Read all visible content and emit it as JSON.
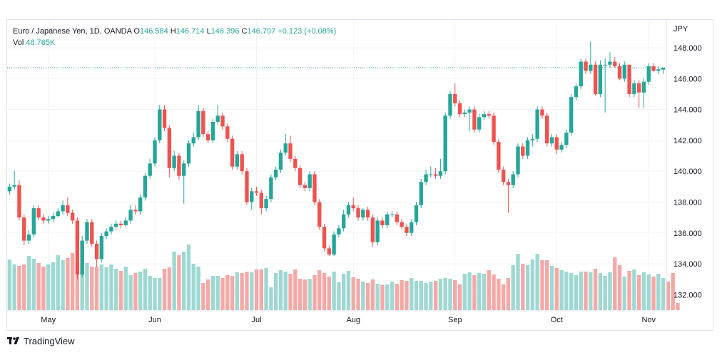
{
  "legend": {
    "symbol": "Euro / Japanese Yen, 1D, OANDA",
    "open_label": "O",
    "open": "146.584",
    "high_label": "H",
    "high": "146.714",
    "low_label": "L",
    "low": "146.396",
    "close_label": "C",
    "close": "146.707",
    "change": "+0.123 (+0.08%)",
    "vol_label": "Vol",
    "vol": "48.765K"
  },
  "currency": "JPY",
  "footer": {
    "brand": "TradingView"
  },
  "colors": {
    "up": "#26a69a",
    "down": "#ef5350",
    "up_vol": "#9fd8d2",
    "down_vol": "#f4a9a7",
    "grid": "#f0f3fa",
    "axis_text": "#131722",
    "last_price_line": "#26a69a"
  },
  "chart_data": {
    "type": "candlestick",
    "title": "Euro / Japanese Yen, 1D, OANDA",
    "ylabel": "JPY",
    "ylim": [
      131.0,
      149.8
    ],
    "y_ticks": [
      "132.000",
      "134.000",
      "136.000",
      "138.000",
      "140.000",
      "142.000",
      "144.000",
      "146.000",
      "148.000"
    ],
    "x_tick_labels": [
      "May",
      "Jun",
      "Jul",
      "Aug",
      "Sep",
      "Oct",
      "Nov"
    ],
    "x_tick_index": [
      8,
      30,
      51,
      71,
      92,
      113,
      132
    ],
    "last_price": 146.707,
    "grid": true,
    "closes": [
      139.0,
      139.1,
      137.0,
      135.5,
      135.9,
      137.6,
      137.0,
      136.8,
      136.9,
      137.1,
      137.4,
      137.8,
      137.3,
      136.8,
      133.3,
      135.5,
      136.7,
      135.3,
      134.3,
      135.8,
      136.1,
      136.4,
      136.6,
      136.5,
      136.8,
      137.5,
      137.4,
      138.3,
      139.7,
      140.5,
      142.0,
      144.0,
      142.8,
      140.2,
      141.0,
      139.7,
      140.5,
      141.8,
      142.2,
      143.9,
      142.4,
      142.0,
      143.2,
      143.6,
      142.9,
      142.1,
      140.3,
      141.1,
      140.0,
      138.0,
      138.7,
      138.6,
      137.6,
      138.2,
      139.6,
      140.1,
      141.2,
      141.8,
      140.8,
      140.2,
      139.1,
      138.9,
      139.8,
      138.0,
      136.4,
      135.0,
      134.6,
      135.9,
      136.3,
      137.2,
      137.8,
      137.6,
      137.0,
      137.5,
      137.0,
      135.4,
      136.8,
      136.5,
      137.2,
      137.2,
      136.7,
      136.4,
      136.0,
      136.7,
      137.8,
      139.3,
      139.8,
      139.8,
      139.7,
      140.0,
      143.6,
      145.0,
      144.4,
      143.7,
      143.8,
      144.0,
      142.7,
      143.5,
      143.7,
      143.6,
      141.9,
      140.1,
      139.3,
      139.1,
      139.8,
      141.6,
      141.0,
      142.0,
      142.1,
      144.0,
      143.6,
      141.8,
      142.2,
      141.4,
      141.7,
      142.5,
      144.8,
      145.5,
      147.1,
      146.5,
      146.9,
      145.0,
      146.9,
      146.9,
      147.1,
      146.8,
      146.0,
      146.9,
      145.0,
      145.7,
      145.1,
      145.8,
      146.8,
      146.5,
      146.6,
      146.707
    ],
    "opens": [
      138.7,
      139.0,
      139.1,
      137.0,
      135.5,
      135.9,
      137.6,
      137.0,
      136.8,
      136.9,
      137.1,
      137.4,
      137.8,
      137.3,
      136.8,
      133.3,
      135.5,
      136.7,
      135.3,
      134.3,
      135.8,
      136.1,
      136.4,
      136.6,
      136.5,
      136.8,
      137.5,
      137.4,
      138.3,
      139.7,
      140.5,
      142.0,
      144.0,
      142.8,
      140.2,
      141.0,
      139.7,
      140.5,
      141.8,
      142.2,
      143.9,
      142.4,
      142.0,
      143.2,
      143.6,
      142.9,
      142.1,
      140.3,
      141.1,
      140.0,
      138.0,
      138.7,
      138.6,
      137.6,
      138.2,
      139.6,
      140.1,
      141.2,
      141.8,
      140.8,
      140.2,
      139.1,
      138.9,
      139.8,
      138.0,
      136.4,
      135.0,
      134.6,
      135.9,
      136.3,
      137.2,
      137.8,
      137.6,
      137.0,
      137.5,
      137.0,
      135.4,
      136.8,
      136.5,
      137.2,
      137.2,
      136.7,
      136.4,
      136.0,
      136.7,
      137.8,
      139.3,
      139.8,
      139.8,
      139.7,
      140.0,
      143.6,
      145.0,
      144.4,
      143.7,
      143.8,
      144.0,
      142.7,
      143.5,
      143.7,
      143.6,
      141.9,
      140.1,
      139.3,
      139.1,
      139.8,
      141.6,
      141.0,
      142.0,
      142.1,
      144.0,
      143.6,
      141.8,
      142.2,
      141.4,
      141.7,
      142.5,
      144.8,
      145.5,
      147.1,
      146.5,
      146.9,
      145.0,
      146.9,
      146.9,
      147.1,
      146.8,
      146.0,
      146.9,
      145.0,
      145.7,
      145.1,
      145.8,
      146.8,
      146.5,
      146.584
    ],
    "highs": [
      139.2,
      140.0,
      139.4,
      137.2,
      136.2,
      137.8,
      137.8,
      137.2,
      137.1,
      137.3,
      137.6,
      138.1,
      138.3,
      137.5,
      137.0,
      135.8,
      136.9,
      136.9,
      135.5,
      136.0,
      136.3,
      136.6,
      136.8,
      136.8,
      137.0,
      137.8,
      137.8,
      138.5,
      139.9,
      140.8,
      142.2,
      144.3,
      144.3,
      143.0,
      141.3,
      141.2,
      140.7,
      142.0,
      142.5,
      144.3,
      144.1,
      142.6,
      143.4,
      144.3,
      143.8,
      143.1,
      142.3,
      141.3,
      141.3,
      140.2,
      138.9,
      139.0,
      138.8,
      138.4,
      139.8,
      140.3,
      141.4,
      142.4,
      142.3,
      141.0,
      140.4,
      139.3,
      140.0,
      140.0,
      138.2,
      136.6,
      135.2,
      136.1,
      136.5,
      137.5,
      138.0,
      138.3,
      137.8,
      137.6,
      137.7,
      137.2,
      137.0,
      137.0,
      137.4,
      137.4,
      137.4,
      136.9,
      136.6,
      136.9,
      138.0,
      139.5,
      140.1,
      140.3,
      140.2,
      140.8,
      143.8,
      145.2,
      145.7,
      144.6,
      144.0,
      144.2,
      144.2,
      143.7,
      143.9,
      143.9,
      143.8,
      142.1,
      140.3,
      139.5,
      140.0,
      141.8,
      141.8,
      142.2,
      142.4,
      144.2,
      144.2,
      143.8,
      142.4,
      142.4,
      141.9,
      142.7,
      145.0,
      145.7,
      147.3,
      147.3,
      148.4,
      147.1,
      147.2,
      147.3,
      147.7,
      147.4,
      147.0,
      147.1,
      146.9,
      145.9,
      145.9,
      146.0,
      147.0,
      147.0,
      146.8,
      146.714
    ],
    "lows": [
      138.5,
      138.8,
      136.8,
      135.2,
      135.3,
      135.7,
      136.8,
      136.6,
      136.6,
      136.7,
      137.0,
      137.2,
      137.1,
      136.6,
      133.0,
      133.1,
      135.3,
      135.1,
      133.8,
      134.1,
      135.6,
      135.9,
      136.2,
      136.3,
      136.4,
      136.6,
      137.2,
      137.2,
      138.1,
      139.5,
      140.3,
      141.8,
      142.6,
      139.6,
      140.0,
      139.4,
      137.9,
      140.3,
      141.6,
      142.0,
      142.2,
      141.8,
      141.8,
      143.0,
      142.7,
      141.9,
      140.1,
      140.1,
      139.8,
      137.8,
      137.5,
      138.4,
      137.2,
      137.4,
      138.0,
      139.4,
      139.9,
      141.0,
      140.6,
      140.0,
      138.9,
      138.7,
      138.7,
      137.8,
      136.2,
      134.8,
      134.5,
      134.5,
      135.7,
      136.1,
      137.0,
      137.4,
      136.8,
      136.8,
      136.8,
      135.1,
      135.2,
      136.3,
      136.3,
      137.0,
      136.5,
      136.2,
      135.8,
      135.8,
      136.5,
      137.6,
      139.1,
      139.6,
      139.5,
      139.5,
      139.8,
      143.4,
      144.2,
      143.5,
      143.5,
      142.6,
      142.5,
      142.5,
      143.3,
      143.4,
      141.7,
      139.9,
      139.1,
      137.3,
      138.9,
      139.6,
      140.8,
      140.8,
      141.6,
      141.9,
      143.4,
      141.6,
      141.6,
      141.1,
      141.2,
      141.5,
      142.3,
      144.6,
      145.3,
      146.3,
      146.3,
      144.9,
      144.8,
      143.8,
      146.7,
      146.7,
      145.9,
      145.8,
      144.8,
      144.8,
      144.1,
      144.1,
      145.6,
      146.4,
      146.3,
      146.3,
      146.396
    ],
    "volumes": [
      0.71,
      0.64,
      0.62,
      0.64,
      0.76,
      0.72,
      0.66,
      0.61,
      0.64,
      0.67,
      0.77,
      0.7,
      0.73,
      0.8,
      0.66,
      0.56,
      0.66,
      0.61,
      0.61,
      0.64,
      0.6,
      0.64,
      0.58,
      0.55,
      0.61,
      0.49,
      0.52,
      0.54,
      0.58,
      0.48,
      0.45,
      0.45,
      0.58,
      0.6,
      0.82,
      0.77,
      0.82,
      0.92,
      0.65,
      0.61,
      0.38,
      0.43,
      0.48,
      0.48,
      0.45,
      0.49,
      0.48,
      0.53,
      0.52,
      0.54,
      0.53,
      0.57,
      0.57,
      0.59,
      0.32,
      0.52,
      0.56,
      0.54,
      0.51,
      0.57,
      0.44,
      0.43,
      0.44,
      0.49,
      0.56,
      0.52,
      0.47,
      0.54,
      0.39,
      0.51,
      0.55,
      0.46,
      0.44,
      0.4,
      0.38,
      0.43,
      0.37,
      0.35,
      0.36,
      0.4,
      0.37,
      0.42,
      0.41,
      0.45,
      0.41,
      0.41,
      0.38,
      0.4,
      0.41,
      0.44,
      0.45,
      0.44,
      0.42,
      0.36,
      0.51,
      0.53,
      0.49,
      0.52,
      0.51,
      0.56,
      0.5,
      0.44,
      0.36,
      0.45,
      0.63,
      0.79,
      0.65,
      0.63,
      0.71,
      0.79,
      0.7,
      0.7,
      0.62,
      0.59,
      0.56,
      0.54,
      0.52,
      0.49,
      0.54,
      0.54,
      0.53,
      0.58,
      0.52,
      0.48,
      0.53,
      0.74,
      0.63,
      0.47,
      0.55,
      0.57,
      0.49,
      0.53,
      0.5,
      0.47,
      0.51,
      0.45,
      0.4,
      0.52,
      0.1
    ]
  }
}
